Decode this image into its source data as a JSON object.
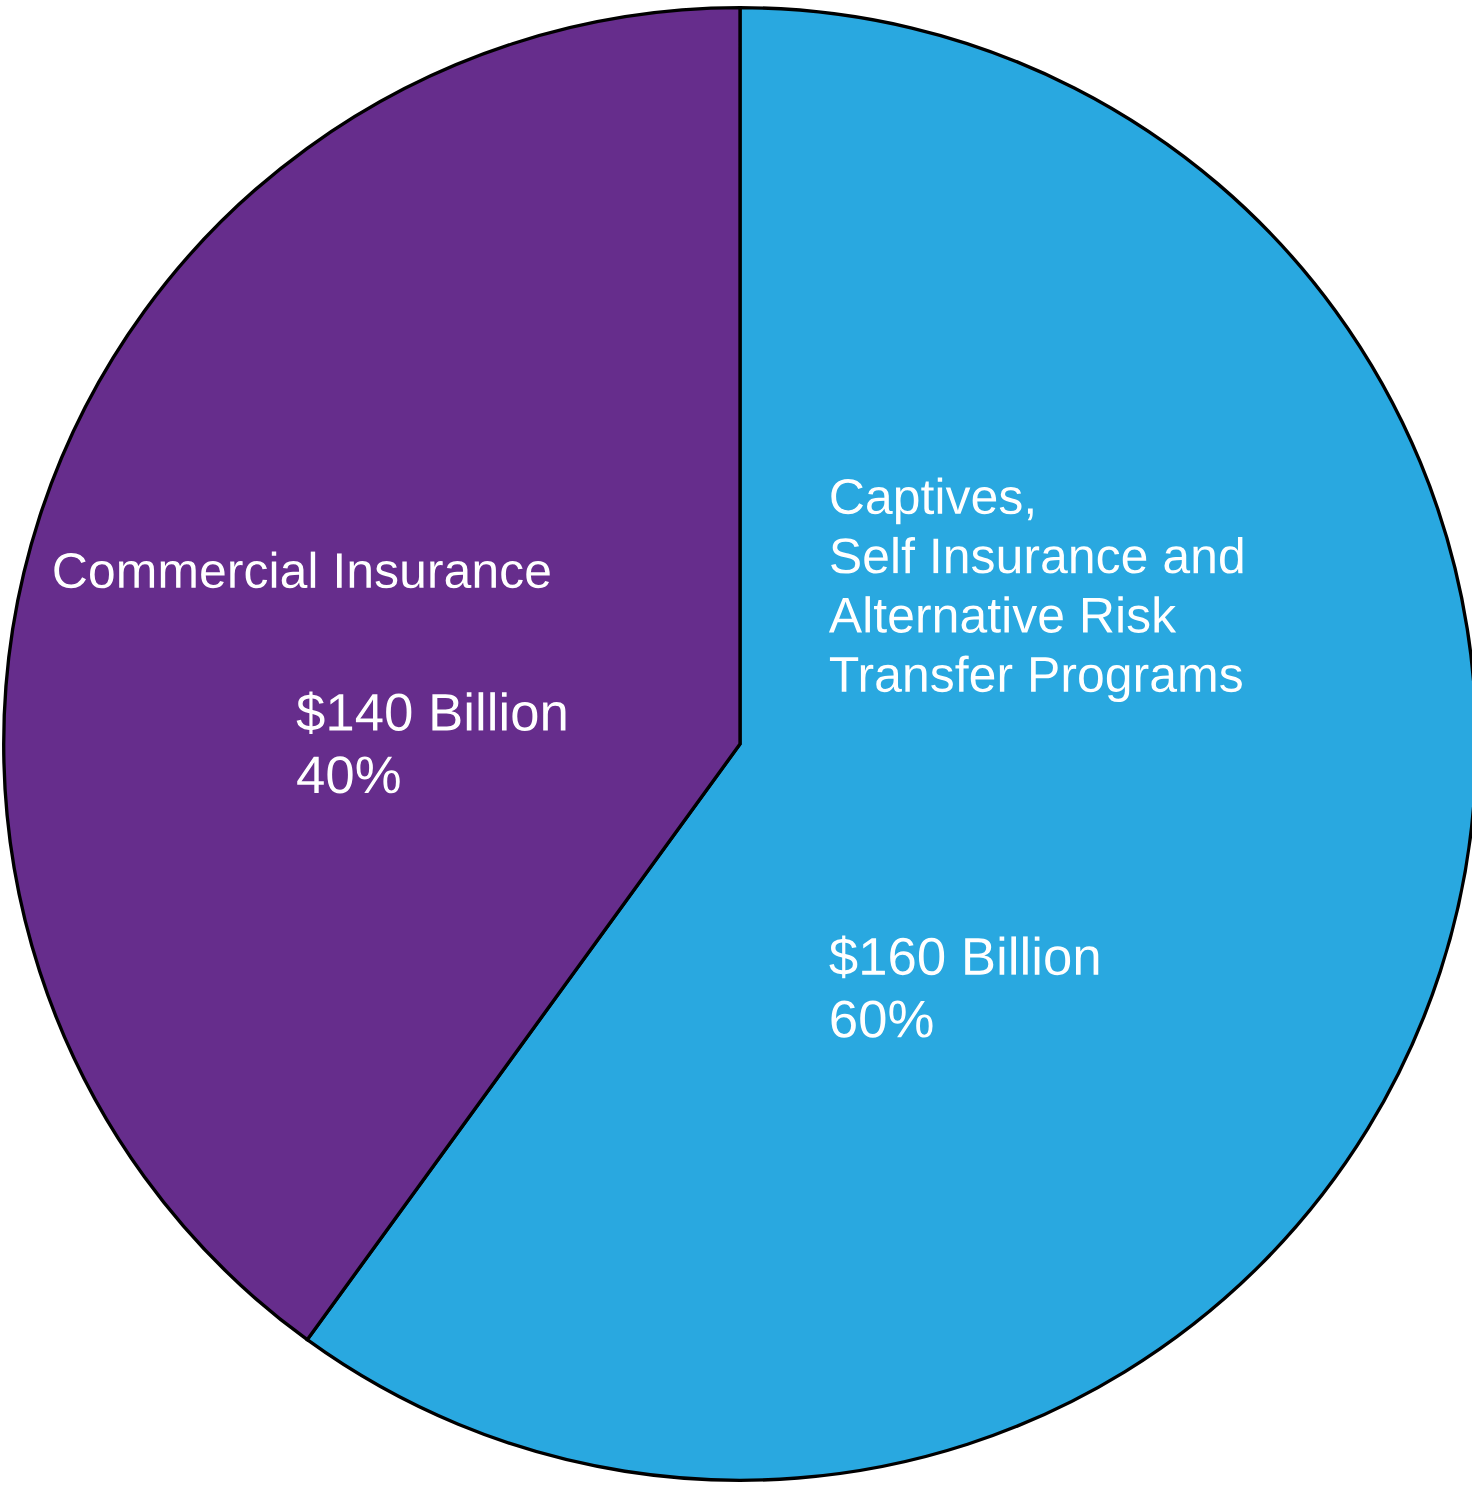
{
  "chart_data": {
    "type": "pie",
    "categories": [
      "Captives,\nSelf Insurance and\nAlternative Risk\nTransfer Programs",
      "Commercial Insurance"
    ],
    "values": [
      60,
      40
    ],
    "value_labels": [
      "$160 Billion\n60%",
      "$140 Billion\n40%"
    ],
    "colors": [
      "#29a8e0",
      "#662d8c"
    ]
  }
}
